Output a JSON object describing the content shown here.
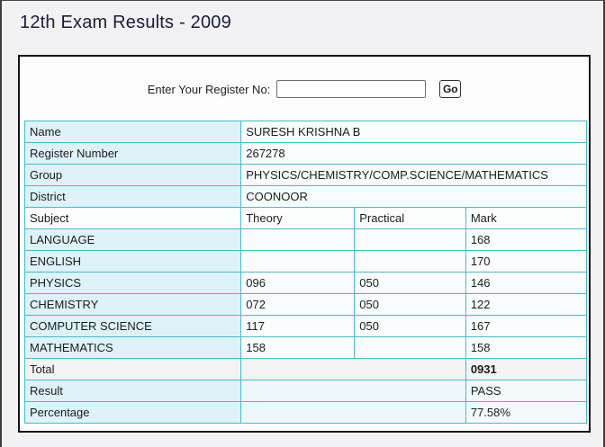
{
  "window": {
    "title": "12th Exam Results - 2009"
  },
  "form": {
    "label": "Enter Your Register No:",
    "input_value": "",
    "go_label": "Go"
  },
  "result": {
    "info": [
      {
        "label": "Name",
        "value": "SURESH KRISHNA B"
      },
      {
        "label": "Register Number",
        "value": "267278"
      },
      {
        "label": "Group",
        "value": "PHYSICS/CHEMISTRY/COMP.SCIENCE/MATHEMATICS"
      },
      {
        "label": "District",
        "value": "COONOOR"
      }
    ],
    "headers": {
      "subject": "Subject",
      "theory": "Theory",
      "practical": "Practical",
      "mark": "Mark"
    },
    "subjects": [
      {
        "name": "LANGUAGE",
        "theory": "",
        "practical": "",
        "mark": "168"
      },
      {
        "name": "ENGLISH",
        "theory": "",
        "practical": "",
        "mark": "170"
      },
      {
        "name": "PHYSICS",
        "theory": "096",
        "practical": "050",
        "mark": "146"
      },
      {
        "name": "CHEMISTRY",
        "theory": "072",
        "practical": "050",
        "mark": "122"
      },
      {
        "name": "COMPUTER SCIENCE",
        "theory": "117",
        "practical": "050",
        "mark": "167"
      },
      {
        "name": "MATHEMATICS",
        "theory": "158",
        "practical": "",
        "mark": "158"
      }
    ],
    "summary": [
      {
        "label": "Total",
        "value": "0931"
      },
      {
        "label": "Result",
        "value": "PASS"
      },
      {
        "label": "Percentage",
        "value": "77.58%"
      }
    ]
  },
  "colors": {
    "table_border": "#4fb9c8",
    "label_cell_bg": "#ddf2f9",
    "value_cell_bg": "#fafdfe",
    "total_row_bg": "#f2f3f2",
    "panel_border": "#141414",
    "page_bg": "#f2f2f4",
    "title_text": "#1c1c38"
  }
}
